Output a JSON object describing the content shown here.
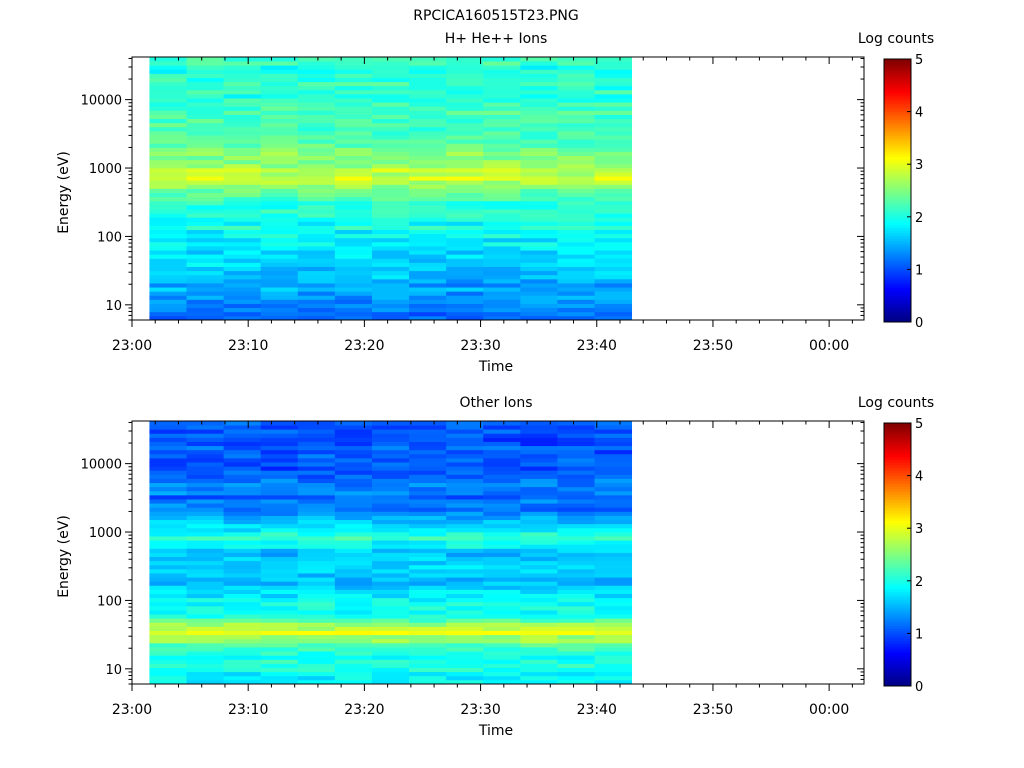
{
  "title": "RPCICA160515T23.PNG",
  "chart_data": [
    {
      "type": "heatmap",
      "title": "H+ He++ Ions",
      "xlabel": "Time",
      "ylabel": "Energy (eV)",
      "y_scale": "log",
      "ylim": [
        6,
        42000
      ],
      "y_ticks": [
        10,
        100,
        1000,
        10000
      ],
      "y_tick_labels": [
        "10",
        "100",
        "1000",
        "10000"
      ],
      "x_tick_labels": [
        "23:00",
        "23:10",
        "23:20",
        "23:30",
        "23:40",
        "23:50",
        "00:00"
      ],
      "x_range": [
        "23:00",
        "00:03"
      ],
      "data_x_range": [
        "23:01.5",
        "23:43"
      ],
      "time_columns": 13,
      "colorbar": {
        "label": "Log counts",
        "min": 0,
        "max": 5,
        "ticks": [
          "0",
          "1",
          "2",
          "3",
          "4",
          "5"
        ]
      },
      "energy_profile": [
        {
          "energy": 8,
          "log_counts": 1.2
        },
        {
          "energy": 15,
          "log_counts": 1.4
        },
        {
          "energy": 30,
          "log_counts": 1.6
        },
        {
          "energy": 60,
          "log_counts": 1.8
        },
        {
          "energy": 150,
          "log_counts": 1.95
        },
        {
          "energy": 400,
          "log_counts": 2.2
        },
        {
          "energy": 750,
          "log_counts": 2.9
        },
        {
          "energy": 1800,
          "log_counts": 2.4
        },
        {
          "energy": 5000,
          "log_counts": 2.2
        },
        {
          "energy": 20000,
          "log_counts": 2.05
        },
        {
          "energy": 40000,
          "log_counts": 2.1
        }
      ]
    },
    {
      "type": "heatmap",
      "title": "Other Ions",
      "xlabel": "Time",
      "ylabel": "Energy (eV)",
      "y_scale": "log",
      "ylim": [
        6,
        42000
      ],
      "y_ticks": [
        10,
        100,
        1000,
        10000
      ],
      "y_tick_labels": [
        "10",
        "100",
        "1000",
        "10000"
      ],
      "x_tick_labels": [
        "23:00",
        "23:10",
        "23:20",
        "23:30",
        "23:40",
        "23:50",
        "00:00"
      ],
      "x_range": [
        "23:00",
        "00:03"
      ],
      "data_x_range": [
        "23:01.5",
        "23:43"
      ],
      "time_columns": 13,
      "colorbar": {
        "label": "Log counts",
        "min": 0,
        "max": 5,
        "ticks": [
          "0",
          "1",
          "2",
          "3",
          "4",
          "5"
        ]
      },
      "energy_profile": [
        {
          "energy": 8,
          "log_counts": 1.9
        },
        {
          "energy": 20,
          "log_counts": 2.05
        },
        {
          "energy": 33,
          "log_counts": 3.0
        },
        {
          "energy": 70,
          "log_counts": 1.9
        },
        {
          "energy": 200,
          "log_counts": 1.6
        },
        {
          "energy": 500,
          "log_counts": 1.55
        },
        {
          "energy": 800,
          "log_counts": 2.1
        },
        {
          "energy": 2000,
          "log_counts": 1.25
        },
        {
          "energy": 10000,
          "log_counts": 1.05
        },
        {
          "energy": 40000,
          "log_counts": 0.95
        }
      ]
    }
  ]
}
